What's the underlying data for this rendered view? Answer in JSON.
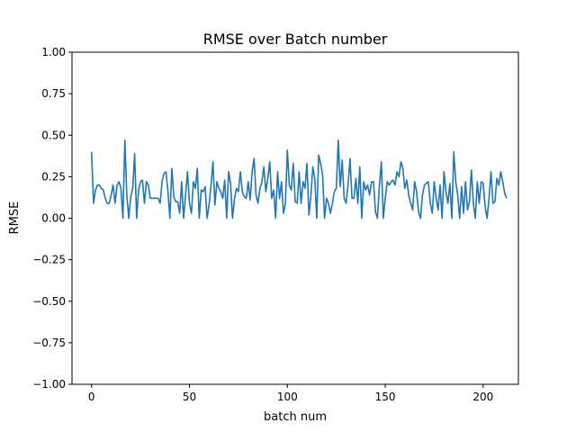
{
  "chart_data": {
    "type": "line",
    "title": "RMSE over Batch number",
    "xlabel": "batch num",
    "ylabel": "RMSE",
    "xlim": [
      -10,
      218
    ],
    "ylim": [
      -1.0,
      1.0
    ],
    "x_ticks": [
      0,
      50,
      100,
      150,
      200
    ],
    "x_tick_labels": [
      "0",
      "50",
      "100",
      "150",
      "200"
    ],
    "y_ticks": [
      -1.0,
      -0.75,
      -0.5,
      -0.25,
      0.0,
      0.25,
      0.5,
      0.75,
      1.0
    ],
    "y_tick_labels": [
      "−1.00",
      "−0.75",
      "−0.50",
      "−0.25",
      "0.00",
      "0.25",
      "0.50",
      "0.75",
      "1.00"
    ],
    "grid": false,
    "line_color": "#1f77b4",
    "series": [
      {
        "values": [
          0.4,
          0.09,
          0.17,
          0.2,
          0.2,
          0.18,
          0.17,
          0.12,
          0.09,
          0.09,
          0.14,
          0.2,
          0.09,
          0.2,
          0.22,
          0.18,
          0.0,
          0.47,
          0.14,
          0.0,
          0.13,
          0.18,
          0.39,
          0.0,
          0.17,
          0.22,
          0.23,
          0.09,
          0.22,
          0.2,
          0.12,
          0.12,
          0.12,
          0.12,
          0.12,
          0.09,
          0.22,
          0.27,
          0.28,
          0.16,
          0.0,
          0.3,
          0.13,
          0.1,
          0.1,
          0.03,
          0.22,
          0.0,
          0.14,
          0.28,
          0.09,
          0.03,
          0.22,
          0.18,
          0.3,
          0.0,
          0.17,
          0.16,
          0.19,
          0.0,
          0.08,
          0.2,
          0.34,
          0.08,
          0.22,
          0.18,
          0.16,
          0.12,
          0.23,
          0.0,
          0.28,
          0.21,
          0.0,
          0.12,
          0.18,
          0.16,
          0.28,
          0.16,
          0.13,
          0.12,
          0.22,
          0.11,
          0.28,
          0.36,
          0.14,
          0.09,
          0.18,
          0.22,
          0.31,
          0.16,
          0.24,
          0.34,
          0.12,
          0.17,
          0.0,
          0.28,
          0.12,
          0.22,
          0.03,
          0.09,
          0.41,
          0.2,
          0.17,
          0.33,
          0.1,
          0.09,
          0.28,
          0.09,
          0.22,
          0.18,
          0.33,
          0.02,
          0.13,
          0.31,
          0.24,
          0.0,
          0.38,
          0.33,
          0.26,
          0.0,
          0.12,
          0.09,
          0.03,
          0.09,
          0.16,
          0.18,
          0.47,
          0.19,
          0.35,
          0.12,
          0.09,
          0.2,
          0.36,
          0.12,
          0.12,
          0.24,
          0.09,
          0.31,
          0.0,
          0.22,
          0.17,
          0.2,
          0.14,
          0.22,
          0.22,
          0.04,
          0.0,
          0.19,
          0.34,
          0.0,
          0.12,
          0.22,
          0.2,
          0.22,
          0.23,
          0.2,
          0.28,
          0.25,
          0.34,
          0.3,
          0.18,
          0.23,
          0.14,
          0.09,
          0.05,
          0.22,
          0.16,
          0.04,
          0.0,
          0.14,
          0.2,
          0.21,
          0.22,
          0.09,
          0.03,
          0.22,
          0.12,
          0.05,
          0.2,
          0.0,
          0.28,
          0.16,
          0.09,
          0.21,
          0.0,
          0.4,
          0.22,
          0.14,
          0.0,
          0.19,
          0.03,
          0.22,
          0.05,
          0.1,
          0.29,
          0.09,
          0.0,
          0.22,
          0.09,
          0.22,
          0.21,
          0.07,
          0.0,
          0.12,
          0.28,
          0.09,
          0.1,
          0.24,
          0.2,
          0.28,
          0.22,
          0.15,
          0.12
        ]
      }
    ]
  }
}
